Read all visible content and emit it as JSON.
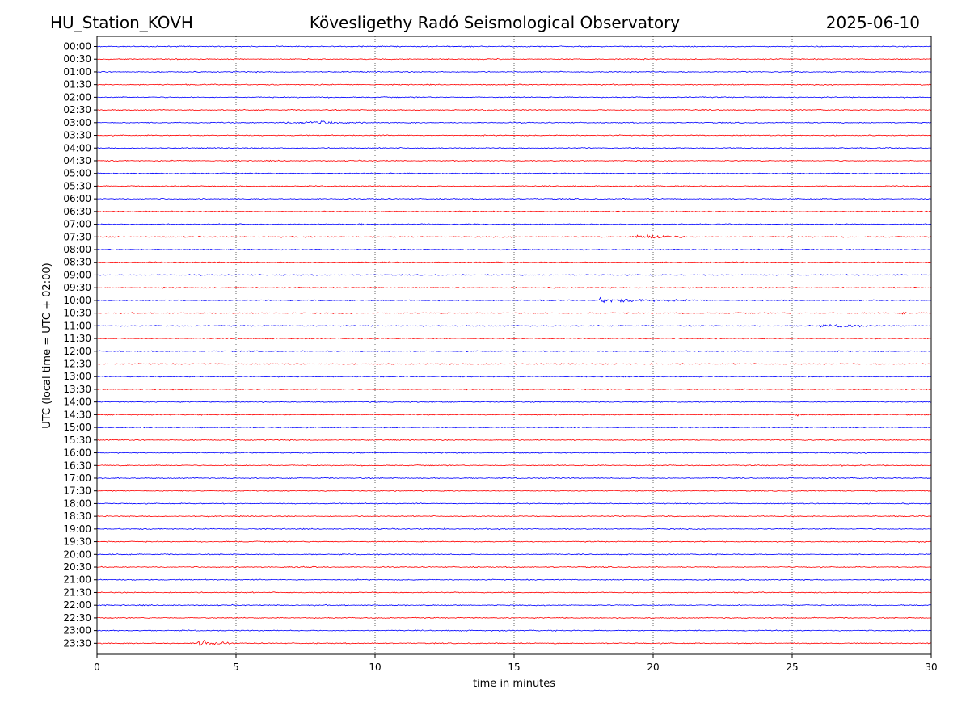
{
  "chart_data": {
    "type": "line",
    "title_left": "HU_Station_KOVH",
    "title": "Kövesligethy Radó Seismological Observatory",
    "title_right": "2025-06-10",
    "xlabel": "time in minutes",
    "ylabel": "UTC (local time = UTC + 02:00)",
    "xlim": [
      0,
      30
    ],
    "x_ticks": [
      0,
      5,
      10,
      15,
      20,
      25,
      30
    ],
    "grid": "vertical dotted at x ticks",
    "colors": {
      "even_rows": "#0000ff",
      "odd_rows": "#ff0000"
    },
    "rows": [
      "00:00",
      "00:30",
      "01:00",
      "01:30",
      "02:00",
      "02:30",
      "03:00",
      "03:30",
      "04:00",
      "04:30",
      "05:00",
      "05:30",
      "06:00",
      "06:30",
      "07:00",
      "07:30",
      "08:00",
      "08:30",
      "09:00",
      "09:30",
      "10:00",
      "10:30",
      "11:00",
      "11:30",
      "12:00",
      "12:30",
      "13:00",
      "13:30",
      "14:00",
      "14:30",
      "15:00",
      "15:30",
      "16:00",
      "16:30",
      "17:00",
      "17:30",
      "18:00",
      "18:30",
      "19:00",
      "19:30",
      "20:00",
      "20:30",
      "21:00",
      "21:30",
      "22:00",
      "22:30",
      "23:00",
      "23:30"
    ],
    "events": [
      {
        "row": "03:00",
        "start": 6.2,
        "end": 9.6,
        "peak_at": 8.5,
        "amplitude": 0.35
      },
      {
        "row": "07:30",
        "start": 19.1,
        "end": 21.5,
        "peak_at": 20.0,
        "amplitude": 0.55
      },
      {
        "row": "10:00",
        "start": 17.9,
        "end": 22.0,
        "peak_at": 18.1,
        "amplitude": 0.45
      },
      {
        "row": "11:00",
        "start": 25.0,
        "end": 28.0,
        "peak_at": 27.2,
        "amplitude": 0.25
      },
      {
        "row": "23:30",
        "start": 3.6,
        "end": 4.8,
        "peak_at": 3.7,
        "amplitude": 1.1
      },
      {
        "row": "02:30",
        "start": 13.9,
        "end": 14.2,
        "peak_at": 14.0,
        "amplitude": 0.2
      },
      {
        "row": "07:00",
        "start": 9.3,
        "end": 9.7,
        "peak_at": 9.5,
        "amplitude": 0.2
      },
      {
        "row": "12:30",
        "start": 13.9,
        "end": 14.6,
        "peak_at": 14.2,
        "amplitude": 0.2
      },
      {
        "row": "15:00",
        "start": 1.9,
        "end": 2.3,
        "peak_at": 2.1,
        "amplitude": 0.2
      },
      {
        "row": "19:00",
        "start": 12.4,
        "end": 12.7,
        "peak_at": 12.5,
        "amplitude": 0.2
      },
      {
        "row": "20:30",
        "start": 6.8,
        "end": 8.5,
        "peak_at": 7.6,
        "amplitude": 0.15
      },
      {
        "row": "16:30",
        "start": 26.7,
        "end": 27.0,
        "peak_at": 26.8,
        "amplitude": 0.2
      },
      {
        "row": "19:30",
        "start": 29.4,
        "end": 29.8,
        "peak_at": 29.6,
        "amplitude": 0.2
      },
      {
        "row": "10:30",
        "start": 28.8,
        "end": 29.2,
        "peak_at": 29.0,
        "amplitude": 0.2
      },
      {
        "row": "14:30",
        "start": 25.1,
        "end": 25.4,
        "peak_at": 25.2,
        "amplitude": 0.2
      }
    ]
  }
}
